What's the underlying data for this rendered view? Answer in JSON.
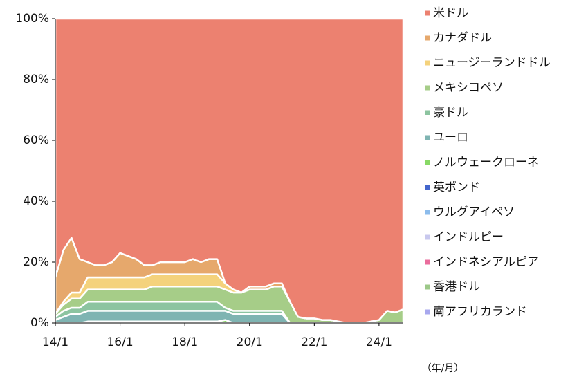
{
  "chart_data": {
    "type": "stacked_area",
    "stack": "percent",
    "x_label": "（年/月）",
    "x": [
      2014,
      2014.25,
      2014.5,
      2014.75,
      2015,
      2015.25,
      2015.5,
      2015.75,
      2016,
      2016.25,
      2016.5,
      2016.75,
      2017,
      2017.25,
      2017.5,
      2017.75,
      2018,
      2018.25,
      2018.5,
      2018.75,
      2019,
      2019.25,
      2019.5,
      2019.75,
      2020,
      2020.25,
      2020.5,
      2020.75,
      2021,
      2021.25,
      2021.5,
      2021.75,
      2022,
      2022.25,
      2022.5,
      2022.75,
      2023,
      2023.25,
      2023.5,
      2023.75,
      2024,
      2024.25,
      2024.5,
      2024.75
    ],
    "xlim": [
      2014,
      2024.75
    ],
    "xticks": [
      {
        "value": 2014,
        "label": "14/1"
      },
      {
        "value": 2016,
        "label": "16/1"
      },
      {
        "value": 2018,
        "label": "18/1"
      },
      {
        "value": 2020,
        "label": "20/1"
      },
      {
        "value": 2022,
        "label": "22/1"
      },
      {
        "value": 2024,
        "label": "24/1"
      }
    ],
    "ylim": [
      0,
      100
    ],
    "yticks": [
      {
        "value": 0,
        "label": "0%"
      },
      {
        "value": 20,
        "label": "20%"
      },
      {
        "value": 40,
        "label": "40%"
      },
      {
        "value": 60,
        "label": "60%"
      },
      {
        "value": 80,
        "label": "80%"
      },
      {
        "value": 100,
        "label": "100%"
      }
    ],
    "legend": "right",
    "series": [
      {
        "name": "米ドル",
        "color": "#ec8170",
        "values": [
          85,
          76,
          72,
          79,
          80,
          81,
          81,
          80,
          77,
          78,
          79,
          81,
          81,
          80,
          80,
          80,
          80,
          79,
          80,
          79,
          79,
          87,
          89,
          90,
          88,
          88,
          88,
          87,
          87,
          93,
          98,
          98.5,
          98.5,
          99,
          99,
          99.5,
          100,
          100,
          100,
          99.5,
          99,
          96,
          96.5,
          95.5
        ]
      },
      {
        "name": "カナダドル",
        "color": "#e6a86c",
        "values": [
          12,
          17,
          18,
          11,
          5,
          4,
          4,
          5,
          8,
          7,
          6,
          4,
          3,
          4,
          4,
          4,
          4,
          5,
          4,
          5,
          5,
          0,
          0,
          0,
          1,
          1,
          1,
          1,
          1,
          0,
          0,
          0,
          0,
          0,
          0,
          0,
          0,
          0,
          0,
          0,
          0,
          0,
          0,
          0
        ]
      },
      {
        "name": "ニュージーランドドル",
        "color": "#f4d27c",
        "values": [
          0,
          1,
          2,
          2,
          4,
          4,
          4,
          4,
          4,
          4,
          4,
          4,
          4,
          4,
          4,
          4,
          4,
          4,
          4,
          4,
          4,
          2,
          1,
          0,
          0,
          0,
          0,
          0,
          0,
          0,
          0,
          0,
          0,
          0,
          0,
          0,
          0,
          0,
          0,
          0,
          0,
          0,
          0,
          0
        ]
      },
      {
        "name": "メキシコペソ",
        "color": "#a6cd88",
        "values": [
          1,
          2,
          3,
          3,
          4,
          4,
          4,
          4,
          4,
          4,
          4,
          4,
          5,
          5,
          5,
          5,
          5,
          5,
          5,
          5,
          5,
          6,
          6,
          6,
          7,
          7,
          7,
          8,
          8,
          7,
          2,
          1.5,
          1.5,
          1,
          1,
          0.5,
          0,
          0,
          0,
          0.5,
          1,
          4,
          3.5,
          4.5
        ]
      },
      {
        "name": "豪ドル",
        "color": "#8cc4a0",
        "values": [
          1,
          2,
          2,
          2,
          3,
          3,
          3,
          3,
          3,
          3,
          3,
          3,
          3,
          3,
          3,
          3,
          3,
          3,
          3,
          3,
          3,
          1,
          1,
          1,
          1,
          1,
          1,
          1,
          1,
          0,
          0,
          0,
          0,
          0,
          0,
          0,
          0,
          0,
          0,
          0,
          0,
          0,
          0,
          0
        ]
      },
      {
        "name": "ユーロ",
        "color": "#7fb4b2",
        "values": [
          1,
          2,
          3,
          3,
          3.5,
          3.5,
          3.5,
          3.5,
          3.5,
          3.5,
          3.5,
          3.5,
          3.5,
          3.5,
          3.5,
          3.5,
          3.5,
          3.5,
          3.5,
          3.5,
          3.5,
          3,
          3,
          3,
          3,
          3,
          3,
          3,
          3,
          0,
          0,
          0,
          0,
          0,
          0,
          0,
          0,
          0,
          0,
          0,
          0,
          0,
          0,
          0
        ]
      },
      {
        "name": "ノルウェークローネ",
        "color": "#88d966",
        "values": [
          0,
          0,
          0,
          0,
          0.5,
          0.5,
          0.5,
          0.5,
          0.5,
          0.5,
          0.5,
          0.5,
          0.5,
          0.5,
          0.5,
          0.5,
          0.5,
          0.5,
          0.5,
          0.5,
          0.5,
          1,
          0,
          0,
          0,
          0,
          0,
          0,
          0,
          0,
          0,
          0,
          0,
          0,
          0,
          0,
          0,
          0,
          0,
          0,
          0,
          0,
          0,
          0
        ]
      },
      {
        "name": "英ポンド",
        "color": "#4466cc",
        "values": [
          0,
          0,
          0,
          0,
          0,
          0,
          0,
          0,
          0,
          0,
          0,
          0,
          0,
          0,
          0,
          0,
          0,
          0,
          0,
          0,
          0,
          0,
          0,
          0,
          0,
          0,
          0,
          0,
          0,
          0,
          0,
          0,
          0,
          0,
          0,
          0,
          0,
          0,
          0,
          0,
          0,
          0,
          0,
          0
        ]
      },
      {
        "name": "ウルグアイペソ",
        "color": "#8cbcec",
        "values": [
          0,
          0,
          0,
          0,
          0,
          0,
          0,
          0,
          0,
          0,
          0,
          0,
          0,
          0,
          0,
          0,
          0,
          0,
          0,
          0,
          0,
          0,
          0,
          0,
          0,
          0,
          0,
          0,
          0,
          0,
          0,
          0,
          0,
          0,
          0,
          0,
          0,
          0,
          0,
          0,
          0,
          0,
          0,
          0
        ]
      },
      {
        "name": "インドルピー",
        "color": "#c8c8ee",
        "values": [
          0,
          0,
          0,
          0,
          0,
          0,
          0,
          0,
          0,
          0,
          0,
          0,
          0,
          0,
          0,
          0,
          0,
          0,
          0,
          0,
          0,
          0,
          0,
          0,
          0,
          0,
          0,
          0,
          0,
          0,
          0,
          0,
          0,
          0,
          0,
          0,
          0,
          0,
          0,
          0,
          0,
          0,
          0,
          0
        ]
      },
      {
        "name": "インドネシアルピア",
        "color": "#ea6c9c",
        "values": [
          0,
          0,
          0,
          0,
          0,
          0,
          0,
          0,
          0,
          0,
          0,
          0,
          0,
          0,
          0,
          0,
          0,
          0,
          0,
          0,
          0,
          0,
          0,
          0,
          0,
          0,
          0,
          0,
          0,
          0,
          0,
          0,
          0,
          0,
          0,
          0,
          0,
          0,
          0,
          0,
          0,
          0,
          0,
          0
        ]
      },
      {
        "name": "香港ドル",
        "color": "#9cc888",
        "values": [
          0,
          0,
          0,
          0,
          0,
          0,
          0,
          0,
          0,
          0,
          0,
          0,
          0,
          0,
          0,
          0,
          0,
          0,
          0,
          0,
          0,
          0,
          0,
          0,
          0,
          0,
          0,
          0,
          0,
          0,
          0,
          0,
          0,
          0,
          0,
          0,
          0,
          0,
          0,
          0,
          0,
          0,
          0,
          0
        ]
      },
      {
        "name": "南アフリカランド",
        "color": "#a8a8ee",
        "values": [
          0,
          0,
          0,
          0,
          0,
          0,
          0,
          0,
          0,
          0,
          0,
          0,
          0,
          0,
          0,
          0,
          0,
          0,
          0,
          0,
          0,
          0,
          0,
          0,
          0,
          0,
          0,
          0,
          0,
          0,
          0,
          0,
          0,
          0,
          0,
          0,
          0,
          0,
          0,
          0,
          0,
          0,
          0,
          0
        ]
      }
    ]
  }
}
